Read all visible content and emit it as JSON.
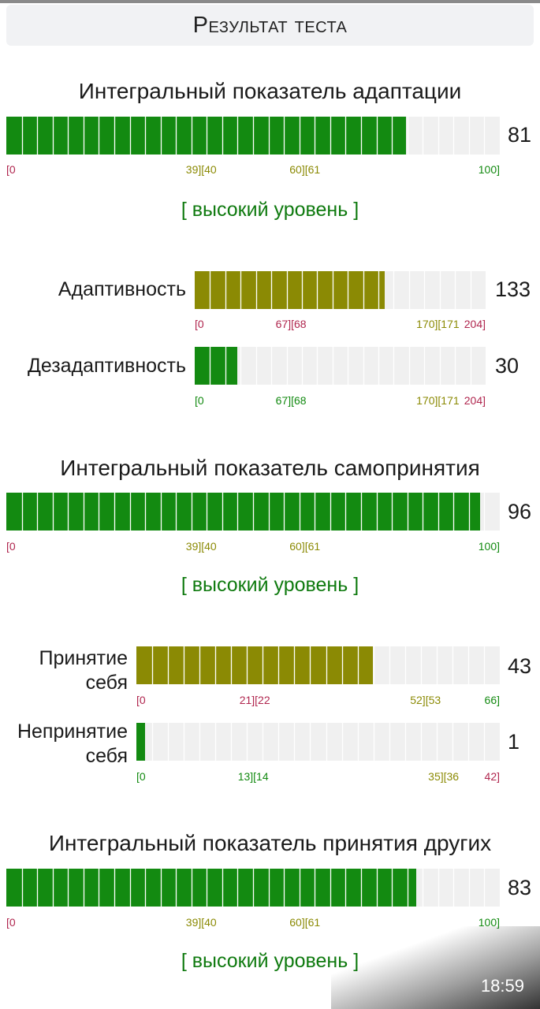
{
  "header": {
    "title": "Результат теста"
  },
  "colors": {
    "green": "#138a11",
    "olive": "#8b8a04",
    "red": "#b0264e",
    "track": "#f0f0f0",
    "level_text": "#0f7a0f"
  },
  "sections": [
    {
      "title": "Интегральный показатель адаптации",
      "value": 81,
      "max": 100,
      "fill_color": "green",
      "scale": [
        "[0",
        "39][40",
        "60][61",
        "100]"
      ],
      "level": "[ высокий уровень ]"
    },
    {
      "title": "Интегральный показатель самопринятия",
      "value": 96,
      "max": 100,
      "fill_color": "green",
      "scale": [
        "[0",
        "39][40",
        "60][61",
        "100]"
      ],
      "level": "[ высокий уровень ]"
    },
    {
      "title": "Интегральный показатель принятия других",
      "value": 83,
      "max": 100,
      "fill_color": "green",
      "scale": [
        "[0",
        "39][40",
        "60][61",
        "100]"
      ],
      "level": "[ высокий уровень ]"
    }
  ],
  "subscales": [
    {
      "label": "Адаптивность",
      "value": 133,
      "max": 204,
      "fill_color": "olive",
      "scale": [
        "[0",
        "67][68",
        "170][171",
        "204]"
      ]
    },
    {
      "label": "Дезадаптивность",
      "value": 30,
      "max": 204,
      "fill_color": "green",
      "scale": [
        "[0",
        "67][68",
        "170][171",
        "204]"
      ]
    },
    {
      "label": "Принятие себя",
      "value": 43,
      "max": 66,
      "fill_color": "olive",
      "scale": [
        "[0",
        "21][22",
        "52][53",
        "66]"
      ]
    },
    {
      "label": "Непринятие себя",
      "value": 1,
      "max": 42,
      "fill_color": "green",
      "scale": [
        "[0",
        "13][14",
        "35][36",
        "42]"
      ]
    }
  ],
  "status_bar": {
    "time": "18:59"
  }
}
